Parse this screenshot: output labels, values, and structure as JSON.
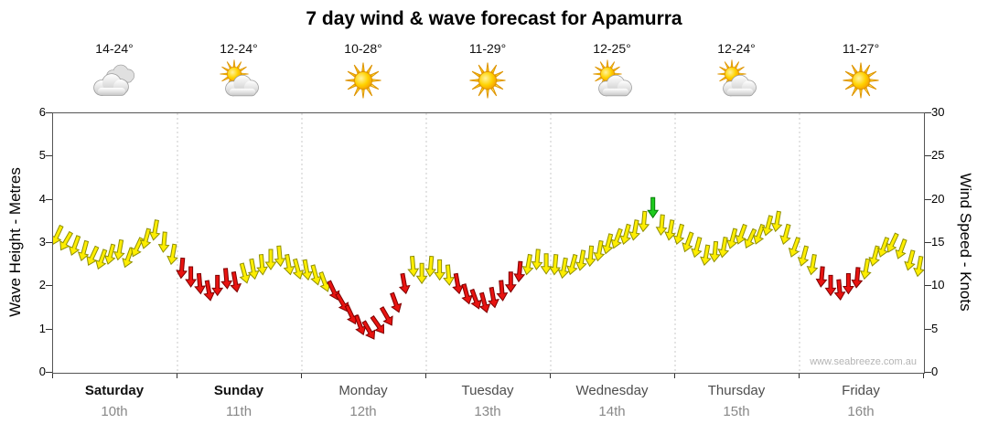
{
  "watermark": "www.seabreeze.com.au",
  "chart_data": {
    "type": "wind-arrows-forecast",
    "title": "7 day wind & wave forecast for Apamurra",
    "left_axis": {
      "label": "Wave Height - Metres",
      "min": 0,
      "max": 6,
      "tick_step": 1
    },
    "right_axis": {
      "label": "Wind Speed - Knots",
      "min": 0,
      "max": 30,
      "tick_step": 5
    },
    "days": [
      {
        "name": "Saturday",
        "date": "10th",
        "temp": "14-24°",
        "icon": "cloudy",
        "weekend": true
      },
      {
        "name": "Sunday",
        "date": "11th",
        "temp": "12-24°",
        "icon": "partly-cloudy",
        "weekend": true
      },
      {
        "name": "Monday",
        "date": "12th",
        "temp": "10-28°",
        "icon": "sunny",
        "weekend": false
      },
      {
        "name": "Tuesday",
        "date": "13th",
        "temp": "11-29°",
        "icon": "sunny",
        "weekend": false
      },
      {
        "name": "Wednesday",
        "date": "14th",
        "temp": "12-25°",
        "icon": "partly-cloudy",
        "weekend": false
      },
      {
        "name": "Thursday",
        "date": "15th",
        "temp": "12-24°",
        "icon": "partly-cloudy",
        "weekend": false
      },
      {
        "name": "Friday",
        "date": "16th",
        "temp": "11-27°",
        "icon": "sunny",
        "weekend": false
      }
    ],
    "arrow_colors": {
      "y": {
        "fill": "#ffee00",
        "stroke": "#8f8f00"
      },
      "r": {
        "fill": "#e81310",
        "stroke": "#7d0000"
      },
      "g": {
        "fill": "#1ecb1e",
        "stroke": "#067d06"
      }
    },
    "points_per_day": 14,
    "points": [
      [
        16.0,
        205,
        "y"
      ],
      [
        15.3,
        210,
        "y"
      ],
      [
        14.8,
        200,
        "y"
      ],
      [
        14.2,
        195,
        "y"
      ],
      [
        13.6,
        205,
        "y"
      ],
      [
        13.2,
        200,
        "y"
      ],
      [
        13.8,
        195,
        "y"
      ],
      [
        14.3,
        190,
        "y"
      ],
      [
        13.4,
        200,
        "y"
      ],
      [
        14.6,
        205,
        "y"
      ],
      [
        15.6,
        195,
        "y"
      ],
      [
        16.6,
        190,
        "y"
      ],
      [
        15.2,
        185,
        "y"
      ],
      [
        13.8,
        190,
        "y"
      ],
      [
        12.2,
        185,
        "r"
      ],
      [
        11.2,
        180,
        "r"
      ],
      [
        10.4,
        175,
        "r"
      ],
      [
        9.6,
        170,
        "r"
      ],
      [
        10.2,
        180,
        "r"
      ],
      [
        11.0,
        175,
        "r"
      ],
      [
        10.6,
        170,
        "r"
      ],
      [
        11.6,
        165,
        "y"
      ],
      [
        12.1,
        170,
        "y"
      ],
      [
        12.6,
        175,
        "y"
      ],
      [
        13.2,
        180,
        "y"
      ],
      [
        13.6,
        175,
        "y"
      ],
      [
        12.6,
        170,
        "y"
      ],
      [
        12.1,
        165,
        "y"
      ],
      [
        12.0,
        170,
        "y"
      ],
      [
        11.4,
        165,
        "y"
      ],
      [
        10.6,
        160,
        "y"
      ],
      [
        9.6,
        155,
        "r"
      ],
      [
        8.2,
        150,
        "r"
      ],
      [
        6.8,
        155,
        "r"
      ],
      [
        5.6,
        160,
        "r"
      ],
      [
        5.0,
        150,
        "r"
      ],
      [
        5.6,
        145,
        "r"
      ],
      [
        6.6,
        150,
        "r"
      ],
      [
        8.2,
        160,
        "r"
      ],
      [
        10.4,
        170,
        "r"
      ],
      [
        12.4,
        175,
        "y"
      ],
      [
        11.6,
        180,
        "y"
      ],
      [
        12.4,
        185,
        "y"
      ],
      [
        12.0,
        180,
        "y"
      ],
      [
        11.4,
        175,
        "y"
      ],
      [
        10.4,
        170,
        "r"
      ],
      [
        9.2,
        165,
        "r"
      ],
      [
        8.6,
        160,
        "r"
      ],
      [
        8.2,
        165,
        "r"
      ],
      [
        8.8,
        170,
        "r"
      ],
      [
        9.6,
        175,
        "r"
      ],
      [
        10.6,
        180,
        "r"
      ],
      [
        11.8,
        185,
        "r"
      ],
      [
        12.6,
        190,
        "y"
      ],
      [
        13.2,
        185,
        "y"
      ],
      [
        12.7,
        180,
        "y"
      ],
      [
        12.6,
        185,
        "y"
      ],
      [
        12.2,
        190,
        "y"
      ],
      [
        12.6,
        195,
        "y"
      ],
      [
        13.1,
        190,
        "y"
      ],
      [
        13.6,
        185,
        "y"
      ],
      [
        14.2,
        190,
        "y"
      ],
      [
        15.0,
        195,
        "y"
      ],
      [
        15.6,
        200,
        "y"
      ],
      [
        16.1,
        195,
        "y"
      ],
      [
        16.6,
        190,
        "y"
      ],
      [
        17.6,
        185,
        "y"
      ],
      [
        19.2,
        180,
        "g"
      ],
      [
        17.2,
        185,
        "y"
      ],
      [
        16.6,
        190,
        "y"
      ],
      [
        16.1,
        195,
        "y"
      ],
      [
        15.2,
        200,
        "y"
      ],
      [
        14.6,
        195,
        "y"
      ],
      [
        13.7,
        190,
        "y"
      ],
      [
        14.1,
        185,
        "y"
      ],
      [
        14.6,
        190,
        "y"
      ],
      [
        15.6,
        195,
        "y"
      ],
      [
        16.1,
        200,
        "y"
      ],
      [
        15.6,
        205,
        "y"
      ],
      [
        16.1,
        200,
        "y"
      ],
      [
        17.1,
        195,
        "y"
      ],
      [
        17.6,
        190,
        "y"
      ],
      [
        16.1,
        195,
        "y"
      ],
      [
        14.6,
        200,
        "y"
      ],
      [
        13.6,
        195,
        "y"
      ],
      [
        12.6,
        190,
        "y"
      ],
      [
        11.2,
        185,
        "r"
      ],
      [
        10.2,
        180,
        "r"
      ],
      [
        9.7,
        175,
        "r"
      ],
      [
        10.4,
        180,
        "r"
      ],
      [
        11.1,
        185,
        "r"
      ],
      [
        12.1,
        190,
        "y"
      ],
      [
        13.6,
        195,
        "y"
      ],
      [
        14.6,
        200,
        "y"
      ],
      [
        15.1,
        205,
        "y"
      ],
      [
        14.4,
        200,
        "y"
      ],
      [
        13.1,
        195,
        "y"
      ],
      [
        12.4,
        190,
        "y"
      ]
    ]
  }
}
